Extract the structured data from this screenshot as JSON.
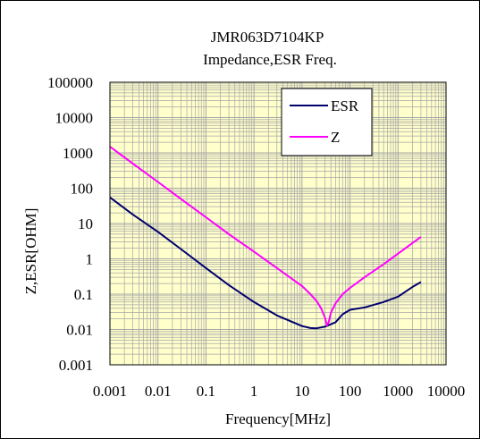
{
  "chart_data": {
    "type": "line",
    "title": "JMR063D7104KP",
    "subtitle": "Impedance,ESR Freq.",
    "xlabel": "Frequency[MHz]",
    "ylabel": "Z,ESR[OHM]",
    "x_scale": "log",
    "y_scale": "log",
    "xlim": [
      0.001,
      10000
    ],
    "ylim": [
      0.001,
      100000
    ],
    "x_ticks": [
      "0.001",
      "0.01",
      "0.1",
      "1",
      "10",
      "100",
      "1000",
      "10000"
    ],
    "y_ticks": [
      "0.001",
      "0.01",
      "0.1",
      "1",
      "10",
      "100",
      "1000",
      "10000",
      "100000"
    ],
    "grid": true,
    "legend_position": "top-right",
    "plot_background": "#FFFFCC",
    "grid_color": "#A6A6A6",
    "series": [
      {
        "name": "ESR",
        "color": "#00006E",
        "x": [
          0.001,
          0.003,
          0.01,
          0.03,
          0.1,
          0.3,
          1,
          3,
          10,
          15,
          20,
          30,
          50,
          70,
          100,
          200,
          500,
          1000,
          2000,
          3000
        ],
        "y": [
          55,
          18,
          5.8,
          1.9,
          0.55,
          0.18,
          0.06,
          0.025,
          0.0125,
          0.011,
          0.0108,
          0.012,
          0.016,
          0.027,
          0.036,
          0.042,
          0.06,
          0.085,
          0.16,
          0.22
        ]
      },
      {
        "name": "Z",
        "color": "#FF00FF",
        "x": [
          0.001,
          0.003,
          0.01,
          0.03,
          0.1,
          0.3,
          1,
          3,
          10,
          15,
          20,
          25,
          30,
          33,
          36,
          40,
          50,
          70,
          100,
          200,
          500,
          1000,
          2000,
          3000
        ],
        "y": [
          1500,
          500,
          150,
          50,
          15,
          5,
          1.6,
          0.55,
          0.17,
          0.1,
          0.065,
          0.04,
          0.022,
          0.013,
          0.016,
          0.03,
          0.055,
          0.1,
          0.15,
          0.3,
          0.7,
          1.4,
          2.8,
          4.2
        ]
      }
    ]
  }
}
